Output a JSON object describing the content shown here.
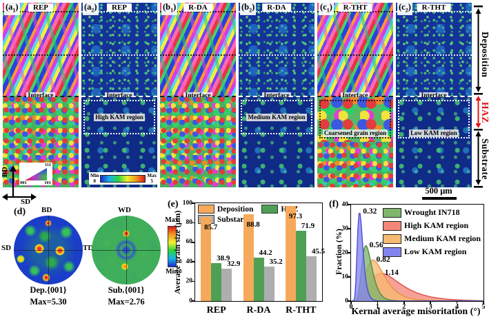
{
  "figure_labels": {
    "interface": "Interface",
    "side_deposition": "Deposition",
    "side_haz": "HAZ",
    "side_substrate": "Substrate",
    "scale_bar": "500 μm",
    "axis_bd": "BD",
    "axis_sd": "SD",
    "ipf_111": "111",
    "ipf_001": "001",
    "ipf_101": "101",
    "cbar_min": "Min",
    "cbar_max": "Max",
    "cbar_lo": "0",
    "cbar_hi": "5"
  },
  "panels": [
    {
      "id_pre": "(a",
      "id_sub": "1",
      "id_post": ")",
      "title": "REP"
    },
    {
      "id_pre": "(a",
      "id_sub": "2",
      "id_post": ")",
      "title": "REP",
      "region": "High KAM region"
    },
    {
      "id_pre": "(b",
      "id_sub": "1",
      "id_post": ")",
      "title": "R-DA"
    },
    {
      "id_pre": "(b",
      "id_sub": "2",
      "id_post": ")",
      "title": "R-DA",
      "region": "Medium KAM region"
    },
    {
      "id_pre": "(c",
      "id_sub": "1",
      "id_post": ")",
      "title": "R-THT",
      "region": "Coarsened grain region"
    },
    {
      "id_pre": "(c",
      "id_sub": "2",
      "id_post": ")",
      "title": "R-THT",
      "region": "Low KAM region"
    }
  ],
  "panel_d": {
    "label": "(d)",
    "pf1_top": "BD",
    "pf1_left": "SD",
    "pf1_right": "TD",
    "pf2_top": "WD",
    "pf1_caption": "Dep.{001}",
    "pf1_max": "Max=5.30",
    "pf2_caption": "Sub.{001}",
    "pf2_max": "Max=2.76",
    "cbar_max": "Max",
    "cbar_min": "Min"
  },
  "chart_data": [
    {
      "id": "e",
      "type": "bar",
      "panel_label": "(e)",
      "title": "",
      "ylabel": "Average grain size (μm)",
      "xlabel": "",
      "ylim": [
        0,
        100
      ],
      "yticks": [
        0,
        20,
        40,
        60,
        80,
        100
      ],
      "categories": [
        "REP",
        "R-DA",
        "R-THT"
      ],
      "series": [
        {
          "name": "Deposition",
          "color": "#F6A95A",
          "values": [
            85.7,
            88.8,
            97.3
          ]
        },
        {
          "name": "HAZ",
          "color": "#4FA055",
          "values": [
            38.9,
            44.2,
            71.9
          ]
        },
        {
          "name": "Substarte",
          "color": "#AEAEB0",
          "values": [
            32.9,
            35.2,
            45.5
          ]
        }
      ],
      "legend_position": "top-left",
      "grid": false
    },
    {
      "id": "f",
      "type": "area",
      "panel_label": "(f)",
      "xlabel": "Kernal average misoritation (°)",
      "ylabel": "Fraction (%)",
      "xlim": [
        0,
        5
      ],
      "ylim": [
        0,
        40
      ],
      "xticks": [
        0,
        1,
        2,
        3,
        4,
        5
      ],
      "yticks": [
        0,
        10,
        20,
        30,
        40
      ],
      "legend_position": "top-right",
      "grid": false,
      "legend_order": [
        "Wrought IN718",
        "High KAM region",
        "Medium KAM region",
        "Low KAM region"
      ],
      "series": [
        {
          "name": "High KAM region",
          "fill": "#F4867A",
          "stroke": "#DE4F44",
          "peak_x": 1.14,
          "peak_y": 11.5,
          "sigma": 0.5,
          "peak_label": "1.14"
        },
        {
          "name": "Medium KAM region",
          "fill": "#F7BA72",
          "stroke": "#E8923B",
          "peak_x": 0.82,
          "peak_y": 17.0,
          "sigma": 0.43,
          "peak_label": "0.82"
        },
        {
          "name": "Wrought IN718",
          "fill": "#7FB56C",
          "stroke": "#4E8B43",
          "peak_x": 0.56,
          "peak_y": 23.0,
          "sigma": 0.34,
          "peak_label": "0.56"
        },
        {
          "name": "Low KAM region",
          "fill": "#8484F0",
          "stroke": "#4D4DD8",
          "peak_x": 0.32,
          "peak_y": 37.0,
          "sigma": 0.33,
          "peak_label": "0.32"
        }
      ]
    }
  ]
}
